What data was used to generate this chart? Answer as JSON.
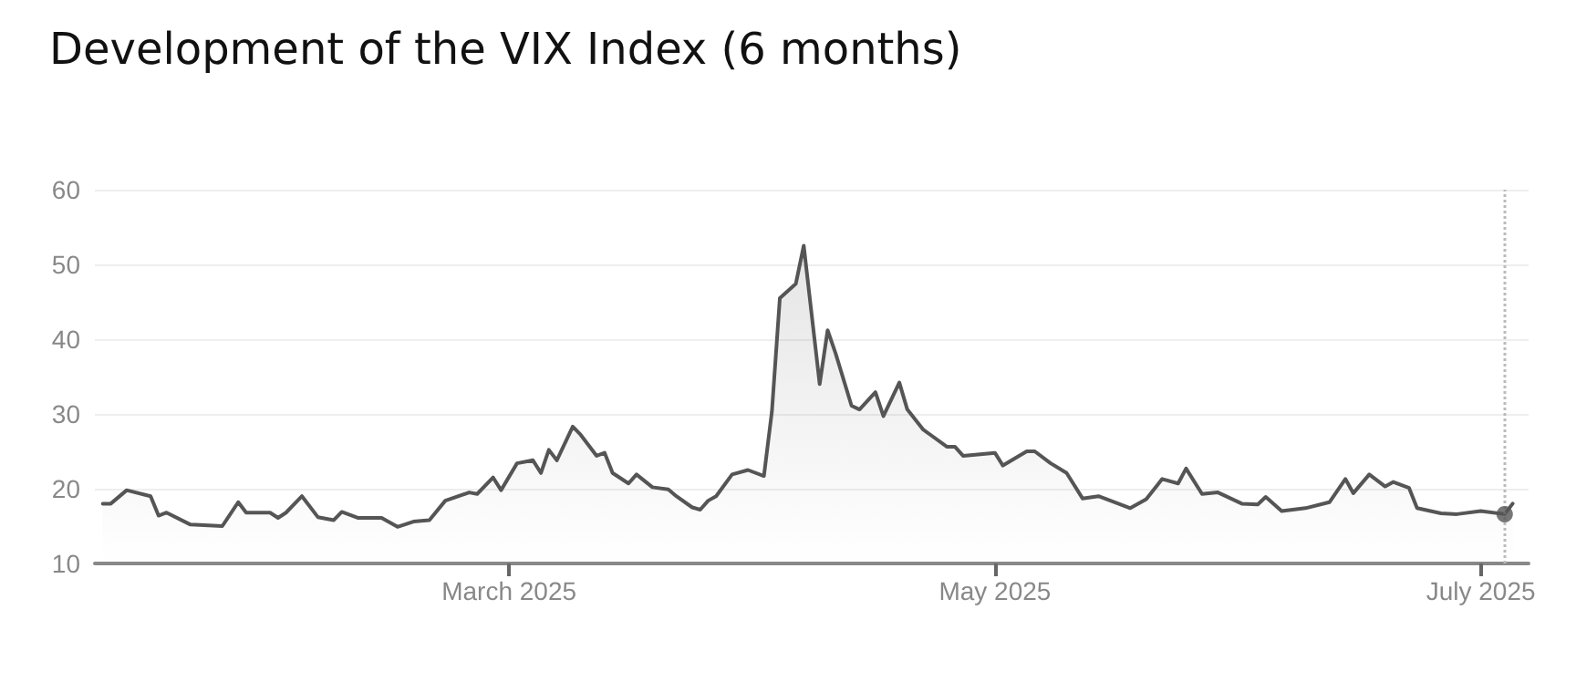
{
  "chart_data": {
    "type": "area",
    "title": "Development of the VIX Index (6 months)",
    "x": [
      "2025-01-09",
      "2025-01-10",
      "2025-01-12",
      "2025-01-15",
      "2025-01-16",
      "2025-01-17",
      "2025-01-20",
      "2025-01-24",
      "2025-01-26",
      "2025-01-27",
      "2025-01-30",
      "2025-01-31",
      "2025-02-01",
      "2025-02-03",
      "2025-02-05",
      "2025-02-07",
      "2025-02-08",
      "2025-02-10",
      "2025-02-13",
      "2025-02-15",
      "2025-02-17",
      "2025-02-19",
      "2025-02-21",
      "2025-02-24",
      "2025-02-25",
      "2025-02-27",
      "2025-02-28",
      "2025-03-02",
      "2025-03-04",
      "2025-03-05",
      "2025-03-06",
      "2025-03-07",
      "2025-03-09",
      "2025-03-10",
      "2025-03-12",
      "2025-03-13",
      "2025-03-14",
      "2025-03-16",
      "2025-03-17",
      "2025-03-19",
      "2025-03-21",
      "2025-03-22",
      "2025-03-24",
      "2025-03-25",
      "2025-03-26",
      "2025-03-27",
      "2025-03-29",
      "2025-03-31",
      "2025-04-02",
      "2025-04-03",
      "2025-04-04",
      "2025-04-06",
      "2025-04-07",
      "2025-04-09",
      "2025-04-10",
      "2025-04-11",
      "2025-04-13",
      "2025-04-14",
      "2025-04-16",
      "2025-04-17",
      "2025-04-19",
      "2025-04-20",
      "2025-04-22",
      "2025-04-25",
      "2025-04-26",
      "2025-04-27",
      "2025-05-01",
      "2025-05-02",
      "2025-05-05",
      "2025-05-06",
      "2025-05-08",
      "2025-05-10",
      "2025-05-12",
      "2025-05-14",
      "2025-05-18",
      "2025-05-20",
      "2025-05-22",
      "2025-05-24",
      "2025-05-25",
      "2025-05-27",
      "2025-05-29",
      "2025-06-01",
      "2025-06-03",
      "2025-06-04",
      "2025-06-06",
      "2025-06-09",
      "2025-06-12",
      "2025-06-14",
      "2025-06-15",
      "2025-06-17",
      "2025-06-19",
      "2025-06-20",
      "2025-06-22",
      "2025-06-23",
      "2025-06-26",
      "2025-06-28",
      "2025-07-01",
      "2025-07-04",
      "2025-07-05"
    ],
    "series": [
      {
        "color": "#555555",
        "values": [
          18.0,
          18.0,
          19.8,
          19.0,
          16.4,
          16.8,
          15.2,
          15.0,
          18.2,
          16.8,
          16.8,
          16.1,
          16.8,
          19.0,
          16.2,
          15.8,
          16.9,
          16.1,
          16.1,
          14.9,
          15.6,
          15.8,
          18.4,
          19.5,
          19.3,
          21.5,
          19.8,
          23.4,
          23.8,
          22.1,
          25.2,
          23.8,
          28.3,
          27.2,
          24.4,
          24.8,
          22.1,
          20.7,
          21.9,
          20.2,
          19.9,
          19.0,
          17.5,
          17.2,
          18.4,
          19.0,
          21.9,
          22.5,
          21.7,
          30.3,
          45.5,
          47.4,
          52.5,
          34.0,
          41.2,
          38.1,
          31.1,
          30.6,
          32.9,
          29.7,
          34.2,
          30.6,
          27.9,
          25.6,
          25.6,
          24.4,
          24.8,
          23.1,
          25.0,
          25.0,
          23.4,
          22.1,
          18.7,
          19.0,
          17.4,
          18.6,
          21.3,
          20.7,
          22.7,
          19.3,
          19.5,
          18.0,
          17.9,
          18.9,
          17.0,
          17.4,
          18.2,
          21.3,
          19.4,
          21.9,
          20.3,
          20.9,
          20.1,
          17.4,
          16.7,
          16.6,
          17.0,
          16.6,
          18.0
        ]
      },
      {
        "type": "scatter",
        "color": "#555555",
        "marker": "circle",
        "x": [
          "2025-07-04"
        ],
        "values": [
          16.6
        ]
      }
    ],
    "xlim": [
      "2025-01-08",
      "2025-07-07"
    ],
    "xticks": [
      {
        "value": "2025-03-01",
        "label": "March 2025"
      },
      {
        "value": "2025-05-01",
        "label": "May 2025"
      },
      {
        "value": "2025-07-01",
        "label": "July 2025"
      }
    ],
    "ylim": [
      10,
      60
    ],
    "yticks": [
      10,
      20,
      30,
      40,
      50,
      60
    ],
    "grid": "y",
    "marker": "none",
    "line_style": "solid",
    "ref_lines": [
      {
        "axis": "x",
        "value": "2025-07-04",
        "color": "#bbbbbb",
        "line_style": "dotted"
      }
    ]
  }
}
